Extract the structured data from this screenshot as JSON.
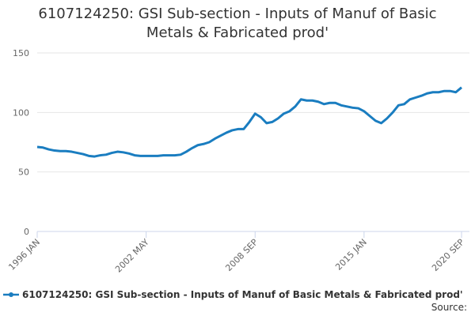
{
  "chart_data": {
    "type": "line",
    "title": "6107124250: GSI Sub-section - Inputs of Manuf of Basic Metals & Fabricated prod'",
    "source": "Source:",
    "categories": [
      "1996 JAN",
      null,
      null,
      null,
      null,
      null,
      null,
      null,
      null,
      null,
      null,
      null,
      null,
      null,
      null,
      null,
      null,
      null,
      null,
      "2002 MAY",
      null,
      null,
      null,
      null,
      null,
      null,
      null,
      null,
      null,
      null,
      null,
      null,
      null,
      null,
      null,
      null,
      null,
      null,
      "2008 SEP",
      null,
      null,
      null,
      null,
      null,
      null,
      null,
      null,
      null,
      null,
      null,
      null,
      null,
      null,
      null,
      null,
      null,
      null,
      "2015 JAN",
      null,
      null,
      null,
      null,
      null,
      null,
      null,
      null,
      null,
      null,
      null,
      null,
      null,
      null,
      null,
      null,
      "2020 SEP"
    ],
    "series": [
      {
        "name": "6107124250: GSI Sub-section - Inputs of Manuf of Basic Metals & Fabricated prod'",
        "color": "#1a7dc0",
        "values": [
          71,
          70.5,
          69,
          68,
          67.5,
          67.5,
          67,
          66,
          65,
          63.5,
          63,
          64,
          64.5,
          66,
          67,
          66.5,
          65.5,
          64,
          63.5,
          63.5,
          63.5,
          63.5,
          64,
          64,
          64,
          64.5,
          67,
          70,
          72.5,
          73.5,
          75,
          78,
          80.5,
          83,
          85,
          86,
          86,
          92,
          99,
          96,
          91,
          92,
          95,
          99,
          101,
          105,
          111,
          110,
          110,
          109,
          107,
          108,
          108,
          106,
          105,
          104,
          103.5,
          101,
          97,
          93,
          91,
          95,
          100,
          106,
          107,
          111,
          112.5,
          114,
          116,
          117,
          117,
          118,
          118,
          117,
          121
        ]
      }
    ],
    "ylim": [
      0,
      150
    ],
    "yticks": [
      0,
      50,
      100,
      150
    ],
    "grid": true
  }
}
